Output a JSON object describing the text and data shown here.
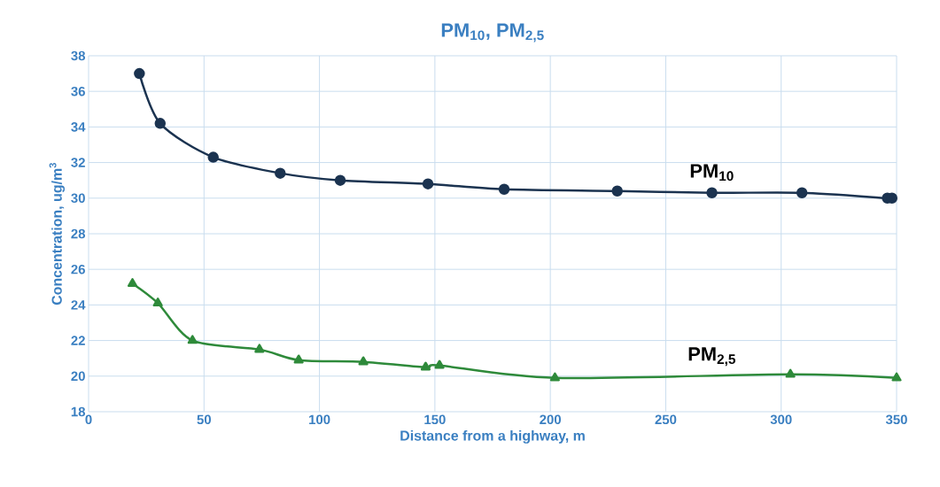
{
  "chart_data": {
    "type": "line",
    "title": "PM$_{10}$, PM$_{2,5}$",
    "xlabel": "Distance from a highway, m",
    "ylabel": "Concentration, ug/m$^{3}$",
    "xlim": [
      0,
      350
    ],
    "xticks": [
      0,
      50,
      100,
      150,
      200,
      250,
      300,
      350
    ],
    "ylim": [
      18,
      38
    ],
    "yticks": [
      18,
      20,
      22,
      24,
      26,
      28,
      30,
      32,
      34,
      36,
      38
    ],
    "grid": true,
    "series": [
      {
        "name": "PM$_{10}$",
        "color": "#1b3350",
        "marker": "circle",
        "x": [
          22,
          31,
          54,
          83,
          109,
          147,
          180,
          229,
          270,
          309,
          346,
          348
        ],
        "values": [
          37.0,
          34.2,
          32.3,
          31.4,
          31.0,
          30.8,
          30.5,
          30.4,
          30.3,
          30.3,
          30.0,
          30.0
        ]
      },
      {
        "name": "PM$_{2,5}$",
        "color": "#2e8a3a",
        "marker": "triangle",
        "x": [
          19,
          30,
          45,
          74,
          91,
          119,
          146,
          152,
          202,
          304,
          350
        ],
        "values": [
          25.2,
          24.1,
          22.0,
          21.5,
          20.9,
          20.8,
          20.5,
          20.6,
          19.9,
          20.1,
          19.9
        ]
      }
    ]
  }
}
